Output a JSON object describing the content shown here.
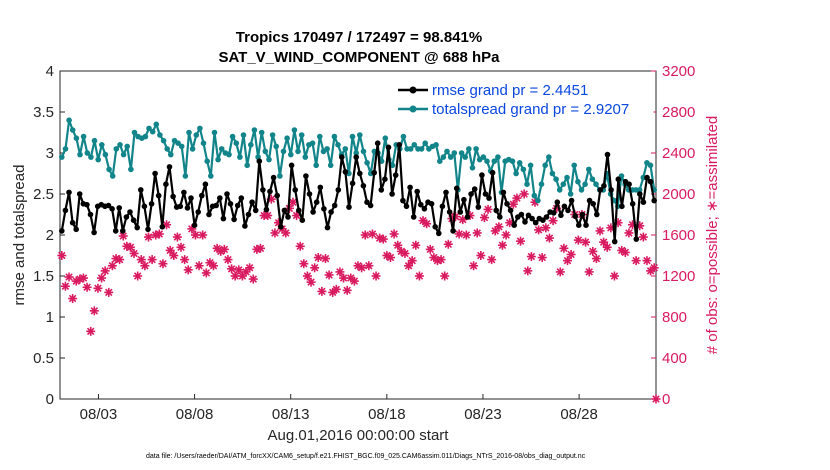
{
  "chart_data": {
    "type": "line",
    "title": "Tropics 170497 / 172497 = 98.841%",
    "subtitle": "SAT_V_WIND_COMPONENT @ 688 hPa",
    "xlabel": "Aug.01,2016 00:00:00 start",
    "ylabel": "rmse and totalspread",
    "y2label": "# of obs: o=possible; ∗=assimilated",
    "footer": "data file: /Users/raeder/DAI/ATM_forcXX/CAM6_setup/f.e21.FHIST_BGC.f09_025.CAM6assim.011/Diags_NTrS_2016-08/obs_diag_output.nc",
    "xlim": [
      1.0,
      32.0
    ],
    "ylim": [
      0,
      4
    ],
    "y2lim": [
      0,
      3200
    ],
    "x_ticks": [
      3,
      8,
      13,
      18,
      23,
      28
    ],
    "x_tick_labels": [
      "08/03",
      "08/08",
      "08/13",
      "08/18",
      "08/23",
      "08/28"
    ],
    "y_ticks": [
      "0",
      "0.5",
      "1",
      "1.5",
      "2",
      "2.5",
      "3",
      "3.5",
      "4"
    ],
    "y2_ticks": [
      "0",
      "400",
      "800",
      "1200",
      "1600",
      "2000",
      "2400",
      "2800",
      "3200"
    ],
    "series": [
      {
        "name": "rmse grand pr = 2.4451",
        "color": "#000000",
        "axis": "left",
        "values": [
          2.05,
          2.3,
          2.52,
          2.15,
          2.07,
          2.5,
          2.38,
          2.37,
          2.25,
          2.03,
          2.35,
          2.37,
          2.35,
          2.36,
          2.32,
          2.05,
          2.33,
          2.05,
          2.22,
          2.28,
          2.18,
          2.09,
          2.55,
          2.35,
          2.07,
          2.38,
          2.75,
          2.48,
          2.1,
          2.62,
          2.83,
          2.47,
          2.34,
          2.35,
          2.52,
          2.33,
          2.45,
          2.12,
          2.28,
          2.48,
          2.62,
          2.25,
          2.35,
          2.36,
          2.45,
          2.2,
          2.5,
          2.38,
          2.19,
          2.36,
          2.45,
          2.11,
          2.25,
          2.4,
          2.3,
          2.9,
          2.55,
          2.31,
          2.53,
          2.7,
          2.48,
          2.1,
          2.3,
          2.22,
          2.85,
          2.55,
          2.3,
          2.18,
          2.72,
          2.5,
          2.28,
          2.4,
          2.58,
          2.32,
          2.09,
          2.28,
          2.36,
          2.55,
          2.95,
          2.77,
          2.34,
          2.63,
          2.95,
          2.75,
          2.6,
          2.4,
          2.36,
          2.76,
          3.12,
          2.55,
          2.68,
          3.07,
          2.5,
          2.73,
          3.1,
          2.42,
          2.35,
          2.58,
          2.22,
          2.53,
          2.37,
          2.32,
          2.4,
          2.38,
          2.1,
          2.02,
          2.35,
          2.52,
          2.28,
          2.05,
          2.57,
          2.28,
          2.43,
          2.22,
          2.5,
          2.56,
          2.34,
          2.73,
          2.5,
          2.45,
          2.76,
          2.3,
          2.22,
          2.52,
          2.38,
          2.3,
          2.12,
          2.22,
          2.25,
          2.16,
          2.24,
          2.2,
          2.15,
          2.2,
          2.18,
          2.22,
          2.28,
          2.27,
          2.4,
          2.24,
          2.35,
          2.3,
          2.42,
          2.23,
          2.12,
          2.25,
          2.12,
          2.42,
          2.38,
          2.25,
          2.55,
          2.6,
          2.98,
          2.55,
          1.92,
          2.68,
          2.35,
          2.65,
          2.62,
          2.38,
          1.95,
          2.5,
          2.4,
          2.7,
          2.65,
          2.42
        ]
      },
      {
        "name": "totalspread grand pr = 2.9207",
        "color": "#12858a",
        "axis": "left",
        "values": [
          2.95,
          3.05,
          3.4,
          3.28,
          3.18,
          2.98,
          3.2,
          3.0,
          2.95,
          3.15,
          2.92,
          3.1,
          2.98,
          2.8,
          2.72,
          3.05,
          3.1,
          2.98,
          3.08,
          2.8,
          3.25,
          3.2,
          3.18,
          3.2,
          3.3,
          3.26,
          3.35,
          3.22,
          3.15,
          3.05,
          2.98,
          3.15,
          3.12,
          3.08,
          2.72,
          3.25,
          3.05,
          3.22,
          3.3,
          3.12,
          2.9,
          2.72,
          3.25,
          2.92,
          3.05,
          3.0,
          2.98,
          3.2,
          3.12,
          2.95,
          3.22,
          2.85,
          3.1,
          3.28,
          2.95,
          3.25,
          3.02,
          2.92,
          3.22,
          3.08,
          2.72,
          3.02,
          3.18,
          2.98,
          3.28,
          3.02,
          3.22,
          2.95,
          3.1,
          3.12,
          2.85,
          3.2,
          3.02,
          3.05,
          2.85,
          3.2,
          3.1,
          2.98,
          3.05,
          2.75,
          3.2,
          3.0,
          3.22,
          3.02,
          2.88,
          2.75,
          3.02,
          3.0,
          2.9,
          3.18,
          2.92,
          2.85,
          3.1,
          3.05,
          3.2,
          3.05,
          3.05,
          3.1,
          3.05,
          3.05,
          3.12,
          3.05,
          3.08,
          3.1,
          2.9,
          2.95,
          3.02,
          2.95,
          3.0,
          2.55,
          3.0,
          2.95,
          3.05,
          2.82,
          3.05,
          2.92,
          2.95,
          2.9,
          2.78,
          2.9,
          2.95,
          2.52,
          2.9,
          2.92,
          2.9,
          2.75,
          2.88,
          2.8,
          2.62,
          2.85,
          2.48,
          2.42,
          2.62,
          2.85,
          2.95,
          2.75,
          2.68,
          2.55,
          2.62,
          2.7,
          2.5,
          2.85,
          2.65,
          2.55,
          2.62,
          2.8,
          2.68,
          2.62,
          2.55,
          2.55,
          2.75,
          2.5,
          2.42,
          2.35,
          2.72,
          2.62,
          2.55,
          2.55,
          2.55,
          2.55,
          2.7,
          2.88,
          2.85,
          2.55
        ]
      },
      {
        "name": "obs assimilated",
        "color": "#d81b60",
        "axis": "right",
        "marker": "asterisk",
        "values": [
          1400,
          1100,
          1190,
          980,
          1150,
          1170,
          1180,
          1090,
          660,
          860,
          1080,
          1180,
          1250,
          1040,
          1300,
          1370,
          1360,
          1590,
          1490,
          1480,
          1420,
          1200,
          1360,
          1300,
          1580,
          1360,
          1600,
          1610,
          1320,
          1700,
          1450,
          1400,
          1580,
          1480,
          1360,
          1260,
          1660,
          1600,
          1300,
          1600,
          1230,
          1330,
          1300,
          1470,
          1440,
          1460,
          1360,
          1270,
          1200,
          1260,
          1200,
          1240,
          1280,
          1170,
          1460,
          1470,
          1790,
          1790,
          1950,
          1620,
          1720,
          1660,
          1620,
          1860,
          1920,
          1790,
          1490,
          1320,
          1200,
          1140,
          1280,
          1380,
          1050,
          1370,
          1210,
          1040,
          1070,
          1240,
          1180,
          1060,
          1180,
          1150,
          1300,
          1280,
          1600,
          1300,
          1610,
          1200,
          1570,
          1560,
          1400,
          1380,
          1610,
          1500,
          1440,
          1420,
          1300,
          1350,
          1500,
          1200,
          1740,
          1710,
          1460,
          1380,
          1350,
          1360,
          1200,
          1510,
          1760,
          1780,
          1610,
          1750,
          1600,
          1790,
          1300,
          1620,
          1400,
          1770,
          1850,
          1360,
          1640,
          1680,
          1500,
          1600,
          1720,
          1900,
          1960,
          1540,
          2000,
          1250,
          1390,
          1920,
          1650,
          1380,
          1670,
          1570,
          1740,
          1860,
          1240,
          1470,
          1350,
          1410,
          1800,
          1550,
          1800,
          1530,
          1240,
          1440,
          1370,
          1640,
          1530,
          1480,
          1670,
          1200,
          1720,
          1450,
          1430,
          1620,
          1700,
          1350,
          1690,
          1580,
          1350,
          1250,
          1280
        ]
      }
    ],
    "extra_marker": {
      "x": 32.0,
      "y2": 0,
      "note": "outlier asterisk on right axis at 0"
    }
  }
}
